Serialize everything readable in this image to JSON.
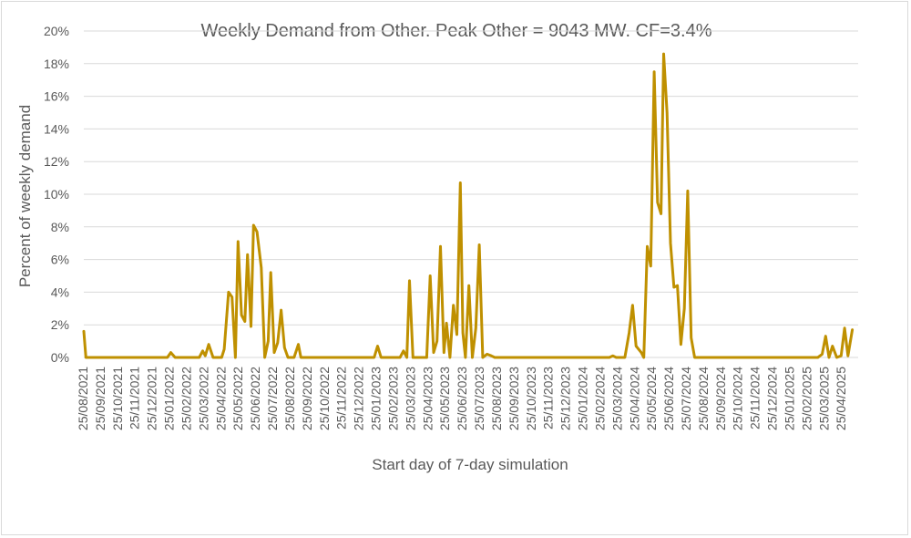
{
  "chart_data": {
    "type": "line",
    "title": "Weekly Demand from Other. Peak Other = 9043 MW. CF=3.4%",
    "xlabel": "Start day of 7-day simulation",
    "ylabel": "Percent of weekly demand",
    "ylim": [
      0,
      20
    ],
    "yticks": [
      "0%",
      "2%",
      "4%",
      "6%",
      "8%",
      "10%",
      "12%",
      "14%",
      "16%",
      "18%",
      "20%"
    ],
    "grid": true,
    "x_categories": [
      "25/08/2021",
      "25/09/2021",
      "25/10/2021",
      "25/11/2021",
      "25/12/2021",
      "25/01/2022",
      "25/02/2022",
      "25/03/2022",
      "25/04/2022",
      "25/05/2022",
      "25/06/2022",
      "25/07/2022",
      "25/08/2022",
      "25/09/2022",
      "25/10/2022",
      "25/11/2022",
      "25/12/2022",
      "25/01/2023",
      "25/02/2023",
      "25/03/2023",
      "25/04/2023",
      "25/05/2023",
      "25/06/2023",
      "25/07/2023",
      "25/08/2023",
      "25/09/2023",
      "25/10/2023",
      "25/11/2023",
      "25/12/2023",
      "25/01/2024",
      "25/02/2024",
      "25/03/2024",
      "25/04/2024",
      "25/05/2024",
      "25/06/2024",
      "25/07/2024",
      "25/08/2024",
      "25/09/2024",
      "25/10/2024",
      "25/11/2024",
      "25/12/2024",
      "25/01/2025",
      "25/02/2025",
      "25/03/2025",
      "25/04/2025"
    ],
    "series": [
      {
        "color": "#bf9000",
        "points": [
          [
            0.0,
            1.6
          ],
          [
            0.12,
            0.0
          ],
          [
            1,
            0.0
          ],
          [
            2,
            0.0
          ],
          [
            3,
            0.0
          ],
          [
            4,
            0.0
          ],
          [
            4.85,
            0.0
          ],
          [
            5.05,
            0.3
          ],
          [
            5.3,
            0.0
          ],
          [
            6,
            0.0
          ],
          [
            6.7,
            0.0
          ],
          [
            6.9,
            0.4
          ],
          [
            7.05,
            0.1
          ],
          [
            7.25,
            0.8
          ],
          [
            7.5,
            0.0
          ],
          [
            8.0,
            0.0
          ],
          [
            8.15,
            0.5
          ],
          [
            8.4,
            4.0
          ],
          [
            8.6,
            3.7
          ],
          [
            8.8,
            0.0
          ],
          [
            8.95,
            7.1
          ],
          [
            9.15,
            2.6
          ],
          [
            9.35,
            2.2
          ],
          [
            9.5,
            6.3
          ],
          [
            9.7,
            1.9
          ],
          [
            9.85,
            8.1
          ],
          [
            10.05,
            7.7
          ],
          [
            10.3,
            5.5
          ],
          [
            10.5,
            0.0
          ],
          [
            10.7,
            1.0
          ],
          [
            10.85,
            5.2
          ],
          [
            11.05,
            0.3
          ],
          [
            11.25,
            0.9
          ],
          [
            11.45,
            2.9
          ],
          [
            11.65,
            0.6
          ],
          [
            11.85,
            0.0
          ],
          [
            12.2,
            0.0
          ],
          [
            12.45,
            0.8
          ],
          [
            12.6,
            0.0
          ],
          [
            13,
            0.0
          ],
          [
            14,
            0.0
          ],
          [
            15,
            0.0
          ],
          [
            16,
            0.0
          ],
          [
            16.85,
            0.0
          ],
          [
            17.05,
            0.7
          ],
          [
            17.25,
            0.0
          ],
          [
            18,
            0.0
          ],
          [
            18.35,
            0.0
          ],
          [
            18.55,
            0.4
          ],
          [
            18.75,
            0.0
          ],
          [
            18.9,
            4.7
          ],
          [
            19.1,
            0.0
          ],
          [
            19.5,
            0.0
          ],
          [
            19.9,
            0.0
          ],
          [
            20.1,
            5.0
          ],
          [
            20.3,
            0.3
          ],
          [
            20.5,
            1.0
          ],
          [
            20.7,
            6.8
          ],
          [
            20.9,
            0.3
          ],
          [
            21.05,
            2.1
          ],
          [
            21.25,
            0.0
          ],
          [
            21.45,
            3.2
          ],
          [
            21.65,
            1.4
          ],
          [
            21.85,
            10.7
          ],
          [
            22.0,
            1.5
          ],
          [
            22.15,
            0.0
          ],
          [
            22.35,
            4.4
          ],
          [
            22.55,
            0.0
          ],
          [
            22.75,
            1.8
          ],
          [
            22.95,
            6.9
          ],
          [
            23.15,
            0.0
          ],
          [
            23.4,
            0.2
          ],
          [
            23.65,
            0.1
          ],
          [
            23.85,
            0.0
          ],
          [
            24,
            0.0
          ],
          [
            25,
            0.0
          ],
          [
            26,
            0.0
          ],
          [
            27,
            0.0
          ],
          [
            28,
            0.0
          ],
          [
            29,
            0.0
          ],
          [
            30,
            0.0
          ],
          [
            30.5,
            0.0
          ],
          [
            30.7,
            0.1
          ],
          [
            30.9,
            0.0
          ],
          [
            31.4,
            0.0
          ],
          [
            31.65,
            1.5
          ],
          [
            31.85,
            3.2
          ],
          [
            32.05,
            0.7
          ],
          [
            32.35,
            0.3
          ],
          [
            32.5,
            0.0
          ],
          [
            32.7,
            6.8
          ],
          [
            32.9,
            5.6
          ],
          [
            33.1,
            17.5
          ],
          [
            33.3,
            9.5
          ],
          [
            33.5,
            8.8
          ],
          [
            33.65,
            18.6
          ],
          [
            33.85,
            15.0
          ],
          [
            34.05,
            7.0
          ],
          [
            34.25,
            4.3
          ],
          [
            34.45,
            4.4
          ],
          [
            34.65,
            0.8
          ],
          [
            34.85,
            3.0
          ],
          [
            35.05,
            10.2
          ],
          [
            35.25,
            1.2
          ],
          [
            35.45,
            0.0
          ],
          [
            36,
            0.0
          ],
          [
            37,
            0.0
          ],
          [
            38,
            0.0
          ],
          [
            39,
            0.0
          ],
          [
            40,
            0.0
          ],
          [
            41,
            0.0
          ],
          [
            42,
            0.0
          ],
          [
            42.6,
            0.0
          ],
          [
            42.85,
            0.2
          ],
          [
            43.05,
            1.3
          ],
          [
            43.25,
            0.0
          ],
          [
            43.45,
            0.7
          ],
          [
            43.7,
            0.0
          ],
          [
            43.95,
            0.1
          ],
          [
            44.15,
            1.8
          ],
          [
            44.35,
            0.1
          ],
          [
            44.6,
            1.7
          ]
        ]
      }
    ]
  }
}
